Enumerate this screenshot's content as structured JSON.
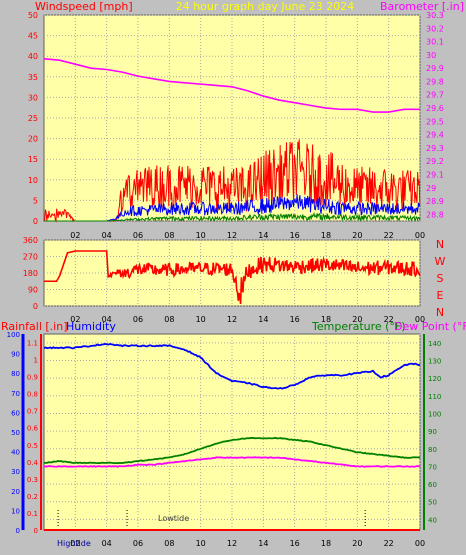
{
  "header": {
    "left_title": "Windspeed [mph]",
    "center_title": "24 hour graph day   June 23 2024",
    "right_title": "Barometer [.in]"
  },
  "lower_header": {
    "rainfall_label": "Rainfall [.in]",
    "humidity_label": "Humidity",
    "temperature_label": "Temperature (°F)",
    "dewpoint_label": "Dew Point (°F)"
  },
  "tide_labels": {
    "high": "Hightide",
    "low": "Lowtide"
  },
  "wind_dir_labels": [
    "N",
    "W",
    "S",
    "E",
    "N"
  ],
  "colors": {
    "plot_bg": "#ffffa8",
    "grid": "#a8a8a8",
    "wind": "#ff0000",
    "gust_blue": "#0000ff",
    "wind_green": "#008000",
    "barometer": "#ff00ff",
    "humidity": "#0000ff",
    "temperature": "#008000",
    "dewpoint": "#ff00ff",
    "rain": "#ff0000",
    "title_red": "#ff0000",
    "title_yellow": "#ffff00",
    "title_blue": "#0000ff",
    "title_green": "#008000"
  },
  "chart_data": [
    {
      "type": "line",
      "name": "wind-barometer",
      "x_ticks": [
        "02",
        "04",
        "06",
        "08",
        "10",
        "12",
        "14",
        "16",
        "18",
        "20",
        "22",
        "00"
      ],
      "xlim": [
        0,
        24
      ],
      "y_left_ticks": [
        "0",
        "5",
        "10",
        "15",
        "20",
        "25",
        "30",
        "35",
        "40",
        "45",
        "50"
      ],
      "ylim_left": [
        0,
        50
      ],
      "y_right_ticks": [
        "28.8",
        "28.9",
        "29",
        "29.1",
        "29.2",
        "29.3",
        "29.4",
        "29.5",
        "29.6",
        "29.7",
        "29.8",
        "29.9",
        "30",
        "30.1",
        "30.2",
        "30.3"
      ],
      "ylim_right": [
        28.75,
        30.3
      ],
      "series": [
        {
          "name": "Windspeed",
          "kind": "noise",
          "color": "#ff0000",
          "x": [
            0,
            0.6,
            1.4,
            2.0,
            2.2,
            4.0,
            4.6,
            5.0,
            6.0,
            8.0,
            10.0,
            12.0,
            13.0,
            14.0,
            15.0,
            16.0,
            18.0,
            19.0,
            20.0,
            22.0,
            24.0
          ],
          "mid": [
            1,
            1,
            1,
            0,
            0,
            0,
            0,
            5,
            7,
            7,
            7,
            6,
            6,
            8,
            9,
            10,
            8,
            7,
            6,
            6,
            6
          ],
          "spread": [
            2,
            2,
            2,
            0,
            0,
            0,
            0,
            5,
            6,
            7,
            7,
            7,
            7,
            9,
            9,
            10,
            9,
            8,
            7,
            7,
            6
          ]
        },
        {
          "name": "Gust",
          "kind": "noise",
          "color": "#0000ff",
          "x": [
            0,
            4.0,
            4.6,
            5.2,
            8.0,
            12.0,
            14.0,
            16.0,
            18.0,
            20.0,
            22.0,
            24.0
          ],
          "mid": [
            0,
            0,
            0.5,
            2,
            2.5,
            2.5,
            3,
            4,
            3,
            2.5,
            2.5,
            2.5
          ],
          "spread": [
            0,
            0,
            0.5,
            1.5,
            2,
            2,
            2.5,
            2.5,
            2.5,
            2,
            2,
            2
          ]
        },
        {
          "name": "Average",
          "kind": "noise",
          "color": "#008000",
          "x": [
            0,
            4.0,
            5.5,
            8.0,
            12.0,
            14.0,
            18.0,
            24.0
          ],
          "mid": [
            0,
            0,
            0.3,
            0.5,
            0.5,
            0.8,
            0.8,
            0.5
          ],
          "spread": [
            0,
            0,
            0.3,
            0.6,
            0.6,
            1,
            1,
            0.6
          ]
        },
        {
          "name": "Barometer",
          "axis": "right",
          "color": "#ff00ff",
          "x": [
            0,
            1,
            2,
            3,
            4,
            5,
            6,
            7,
            8,
            9,
            10,
            11,
            12,
            13,
            14,
            15,
            16,
            17,
            18,
            19,
            20,
            21,
            22,
            23,
            24
          ],
          "y": [
            29.97,
            29.96,
            29.93,
            29.9,
            29.89,
            29.87,
            29.84,
            29.82,
            29.8,
            29.79,
            29.78,
            29.77,
            29.76,
            29.73,
            29.69,
            29.66,
            29.64,
            29.62,
            29.6,
            29.59,
            29.59,
            29.57,
            29.57,
            29.59,
            29.59
          ]
        }
      ]
    },
    {
      "type": "line",
      "name": "wind-direction",
      "x_ticks": [
        "02",
        "04",
        "06",
        "08",
        "10",
        "12",
        "14",
        "16",
        "18",
        "20",
        "22",
        "00"
      ],
      "xlim": [
        0,
        24
      ],
      "y_ticks": [
        "0",
        "90",
        "180",
        "270",
        "360"
      ],
      "ylim": [
        0,
        360
      ],
      "series": [
        {
          "name": "Wind direction",
          "color": "#ff0000",
          "x": [
            0.0,
            0.8,
            1.0,
            1.5,
            2.0,
            4.0,
            4.1,
            4.8,
            5.0,
            6.0,
            7.5,
            10.0,
            12.0,
            12.5,
            13.0,
            14.0,
            16.0,
            18.0,
            20.0,
            22.0,
            24.0
          ],
          "y": [
            135,
            135,
            165,
            290,
            300,
            300,
            165,
            185,
            175,
            200,
            195,
            205,
            200,
            60,
            190,
            230,
            215,
            225,
            205,
            210,
            200
          ],
          "jitter": [
            0,
            0,
            0,
            0,
            0,
            0,
            10,
            20,
            30,
            35,
            35,
            35,
            40,
            80,
            45,
            45,
            40,
            40,
            40,
            40,
            40
          ]
        }
      ]
    },
    {
      "type": "line",
      "name": "rain-humidity-temperature",
      "x_ticks": [
        "02",
        "04",
        "06",
        "08",
        "10",
        "12",
        "14",
        "16",
        "18",
        "20",
        "22",
        "00"
      ],
      "xlim": [
        0,
        24
      ],
      "y_humidity_ticks": [
        "0",
        "10",
        "20",
        "30",
        "40",
        "50",
        "60",
        "70",
        "80",
        "90",
        "100"
      ],
      "ylim_humidity": [
        0,
        100
      ],
      "y_rain_ticks": [
        "0",
        "0.1",
        "0.2",
        "0.3",
        "0.4",
        "0.5",
        "0.6",
        "0.7",
        "0.8",
        "0.9",
        "1",
        "1.1"
      ],
      "ylim_rain": [
        0,
        1.15
      ],
      "y_temp_ticks": [
        "30",
        "40",
        "50",
        "60",
        "70",
        "80",
        "90",
        "100",
        "110",
        "120",
        "130",
        "140"
      ],
      "ylim_temp": [
        34,
        145
      ],
      "tide_marks": [
        {
          "label": "Hightide",
          "x": 0.9
        },
        {
          "label": "Lowtide",
          "x": 5.3
        },
        {
          "label": "",
          "x": 20.5
        }
      ],
      "series": [
        {
          "name": "Humidity",
          "axis": "humidity",
          "color": "#0000ff",
          "x": [
            0,
            0.5,
            1,
            2,
            3,
            4,
            5,
            6,
            7,
            8,
            9,
            10,
            11,
            12,
            13,
            14,
            15,
            16,
            17,
            18,
            19,
            20,
            21,
            21.5,
            22,
            23,
            23.5,
            24
          ],
          "y": [
            93,
            93,
            93,
            93,
            94,
            95,
            94,
            94,
            94,
            94,
            92,
            88,
            80,
            76,
            75,
            73,
            72,
            74,
            78,
            79,
            79,
            80,
            81,
            78,
            79,
            84,
            85,
            84
          ]
        },
        {
          "name": "Rainfall",
          "axis": "rain",
          "color": "#ff0000",
          "x": [
            0,
            24
          ],
          "y": [
            0,
            0
          ]
        },
        {
          "name": "Temperature",
          "axis": "temp",
          "color": "#008000",
          "x": [
            0,
            1,
            2,
            3,
            4,
            5,
            6,
            7,
            8,
            9,
            10,
            11,
            12,
            13,
            14,
            15,
            16,
            17,
            18,
            19,
            20,
            21,
            22,
            23,
            24
          ],
          "y": [
            72,
            73,
            72,
            72,
            72,
            72,
            73,
            74,
            75,
            77,
            80,
            83,
            85,
            86,
            86,
            86,
            85,
            84,
            82,
            80,
            78,
            77,
            76,
            75,
            75
          ]
        },
        {
          "name": "Dew Point",
          "axis": "temp",
          "color": "#ff00ff",
          "x": [
            0,
            1,
            2,
            3,
            4,
            5,
            6,
            7,
            8,
            9,
            10,
            11,
            12,
            13,
            14,
            15,
            16,
            17,
            18,
            19,
            20,
            21,
            22,
            23,
            24
          ],
          "y": [
            70,
            70,
            70,
            70,
            70,
            70,
            71,
            71,
            72,
            73,
            74,
            75,
            75,
            75,
            75,
            75,
            74,
            73,
            72,
            71,
            70,
            70,
            70,
            70,
            70
          ]
        }
      ]
    }
  ]
}
